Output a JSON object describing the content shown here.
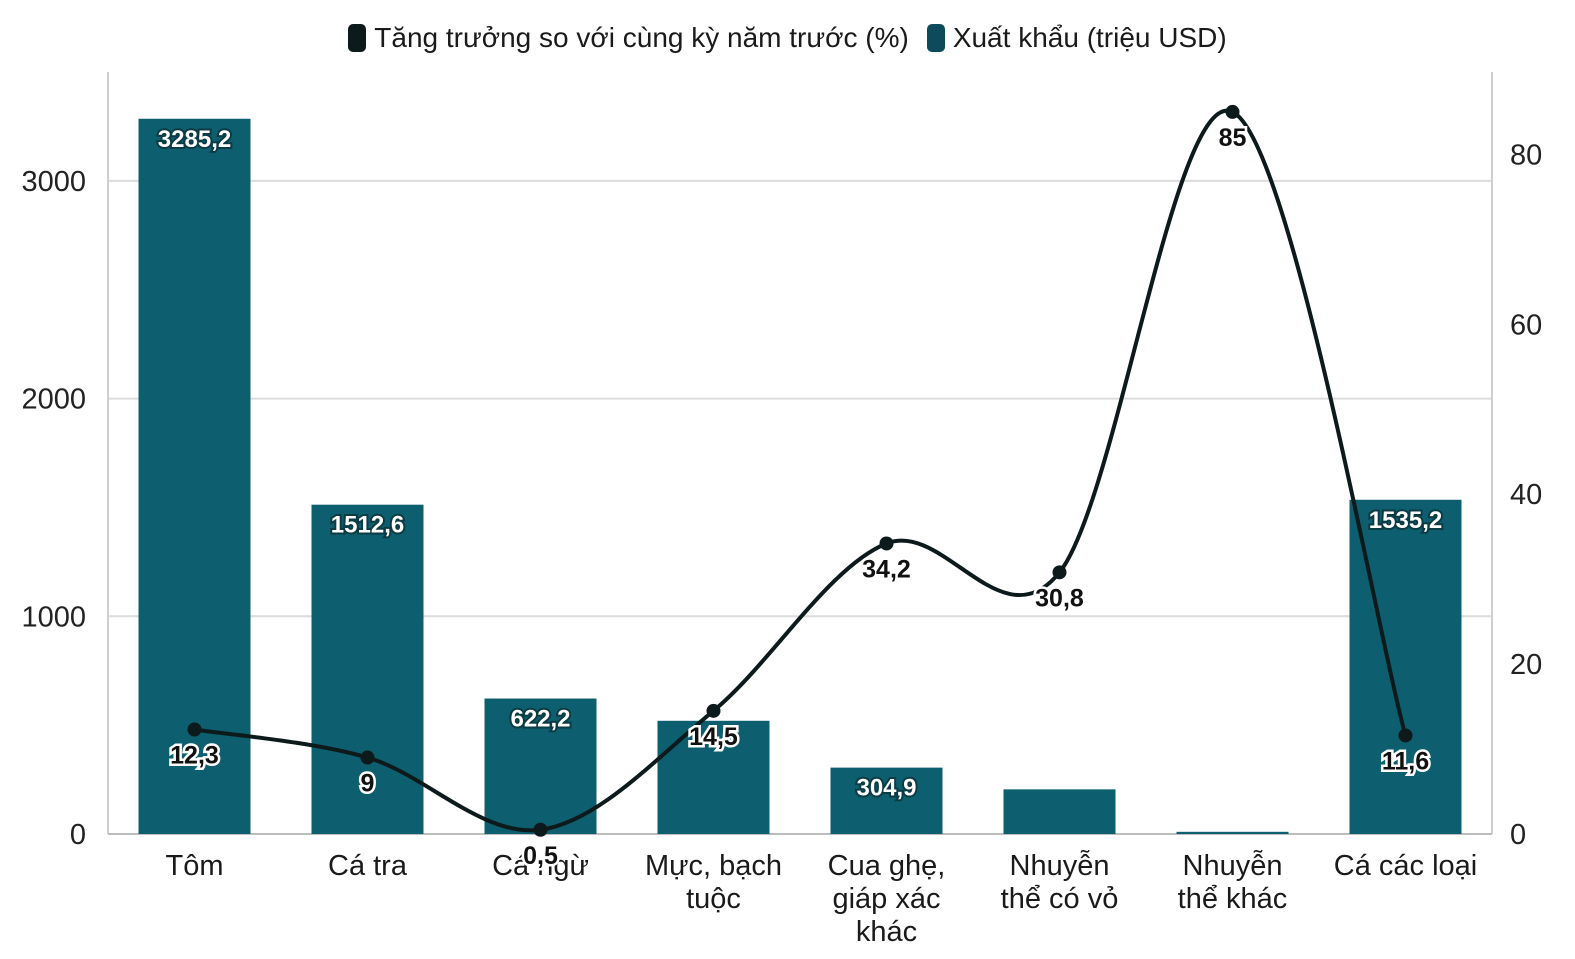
{
  "chart_data": {
    "type": "bar",
    "categories": [
      [
        "Tôm"
      ],
      [
        "Cá tra"
      ],
      [
        "Cá ngừ"
      ],
      [
        "Mực, bạch",
        "tuộc"
      ],
      [
        "Cua ghẹ,",
        "giáp xác",
        "khác"
      ],
      [
        "Nhuyễn",
        "thể có vỏ"
      ],
      [
        "Nhuyễn",
        "thể khác"
      ],
      [
        "Cá các loại"
      ]
    ],
    "series": [
      {
        "name": "Xuất khẩu (triệu USD)",
        "type": "bar",
        "axis": "left",
        "values": [
          3285.2,
          1512.6,
          622.2,
          520,
          304.9,
          205,
          10,
          1535.2
        ],
        "labels": [
          "3285,2",
          "1512,6",
          "622,2",
          "",
          "304,9",
          "",
          "",
          "1535,2"
        ]
      },
      {
        "name": "Tăng trưởng so với cùng kỳ năm trước (%)",
        "type": "line",
        "axis": "right",
        "values": [
          12.3,
          9,
          0.5,
          14.5,
          34.2,
          30.8,
          85,
          11.6
        ],
        "labels": [
          "12,3",
          "9",
          "0,5",
          "14,5",
          "34,2",
          "30,8",
          "85",
          "11,6"
        ]
      }
    ],
    "ylim_left": [
      0,
      3500
    ],
    "yticks_left": [
      "0",
      "1000",
      "2000",
      "3000"
    ],
    "ylim_right": [
      0,
      89.7
    ],
    "yticks_right": [
      "0",
      "20",
      "40",
      "60",
      "80"
    ],
    "grid": true,
    "legend_position": "top-center",
    "colors": {
      "bar": "#0d5e6e",
      "line": "#0d1a1c",
      "grid": "#dcdcdc"
    }
  },
  "legend": {
    "items": [
      {
        "label": "Tăng trưởng so với cùng kỳ năm trước (%)",
        "color": "#0d1a1c"
      },
      {
        "label": "Xuất khẩu (triệu USD)",
        "color": "#0c4a5c"
      }
    ]
  }
}
